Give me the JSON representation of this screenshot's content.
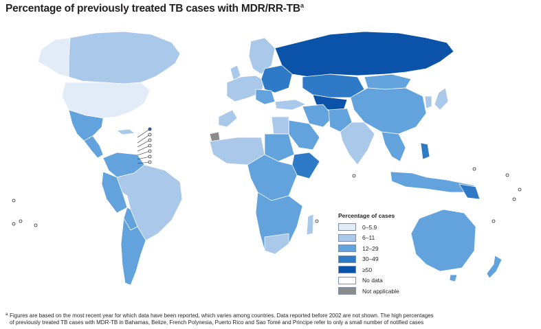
{
  "title": {
    "text": "Percentage of previously treated TB cases with MDR/RR-TB",
    "superscript": "a"
  },
  "colors": {
    "ocean": "#ffffff",
    "border": "#ffffff",
    "class_0_5_9": "#e2ecf8",
    "class_6_11": "#aac8ea",
    "class_12_29": "#63a3dd",
    "class_30_49": "#2f7ac6",
    "class_50_plus": "#0a53a8",
    "no_data": "#ffffff",
    "not_applicable": "#8c8c8c"
  },
  "legend": {
    "title": "Percentage of cases",
    "items": [
      {
        "label": "0–5.9",
        "color": "#e2ecf8"
      },
      {
        "label": "6–11",
        "color": "#aac8ea"
      },
      {
        "label": "12–29",
        "color": "#63a3dd"
      },
      {
        "label": "30–49",
        "color": "#2f7ac6"
      },
      {
        "label": "≥50",
        "color": "#0a53a8"
      },
      {
        "label": "No data",
        "color": "#ffffff"
      },
      {
        "label": "Not applicable",
        "color": "#8c8c8c"
      }
    ]
  },
  "footnote": {
    "marker": "a",
    "line1": "Figures are based on the most recent year for which data have been reported, which varies among countries. Data reported before 2002 are not shown. The high percentages",
    "line2": "of previously treated TB cases with MDR-TB in Bahamas, Belize, French Polynesia, Puerto Rico and Sao Tomé and Principe refer to only a small number of notified cases"
  }
}
